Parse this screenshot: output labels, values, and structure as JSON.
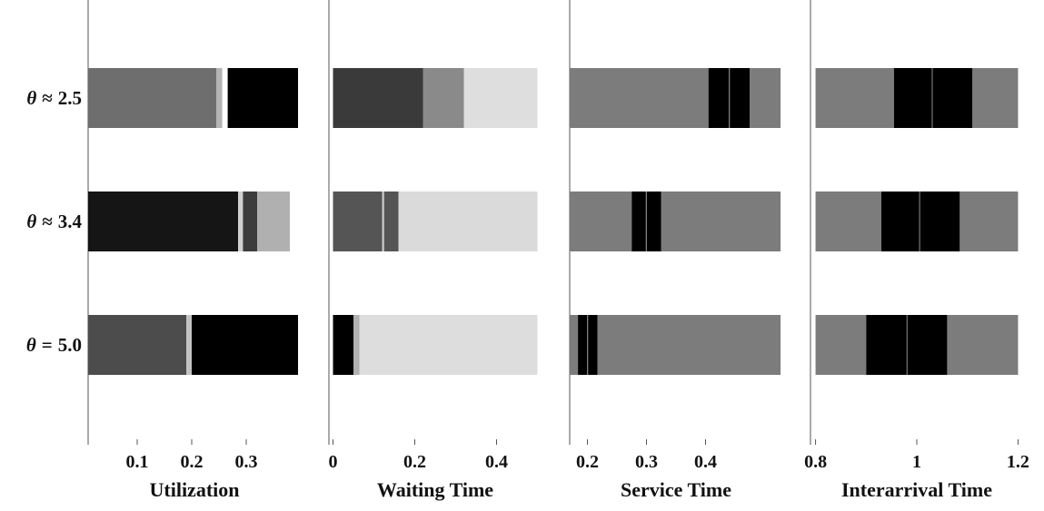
{
  "chart_data": {
    "type": "bar",
    "layout": "small multiples, horizontal segmented bars",
    "rows": [
      {
        "prefix": "θ",
        "relation": "≈",
        "value": "2.5"
      },
      {
        "prefix": "θ",
        "relation": "≈",
        "value": "3.4"
      },
      {
        "prefix": "θ",
        "relation": "=",
        "value": "5.0"
      }
    ],
    "panels": [
      {
        "xlabel": "Utilization",
        "xlim": [
          0.01,
          0.4
        ],
        "ticks": [
          {
            "value": 0.1,
            "label": "0.1"
          },
          {
            "value": 0.2,
            "label": "0.2"
          },
          {
            "value": 0.3,
            "label": "0.3"
          }
        ],
        "bars": [
          [
            {
              "x0": 0.01,
              "x1": 0.245,
              "color": "#6e6e6e"
            },
            {
              "x0": 0.245,
              "x1": 0.256,
              "color": "#b4b4b4"
            },
            {
              "x0": 0.266,
              "x1": 0.395,
              "color": "#000000"
            }
          ],
          [
            {
              "x0": 0.01,
              "x1": 0.285,
              "color": "#151515"
            },
            {
              "x0": 0.285,
              "x1": 0.294,
              "color": "#d0d0d0"
            },
            {
              "x0": 0.294,
              "x1": 0.32,
              "color": "#3c3c3c"
            },
            {
              "x0": 0.32,
              "x1": 0.38,
              "color": "#b0b0b0"
            }
          ],
          [
            {
              "x0": 0.01,
              "x1": 0.19,
              "color": "#4c4c4c"
            },
            {
              "x0": 0.19,
              "x1": 0.2,
              "color": "#c2c2c2"
            },
            {
              "x0": 0.2,
              "x1": 0.395,
              "color": "#000000"
            }
          ]
        ]
      },
      {
        "xlabel": "Waiting Time",
        "xlim": [
          -0.01,
          0.51
        ],
        "ticks": [
          {
            "value": 0,
            "label": "0"
          },
          {
            "value": 0.2,
            "label": "0.2"
          },
          {
            "value": 0.4,
            "label": "0.4"
          }
        ],
        "bars": [
          [
            {
              "x0": 0,
              "x1": 0.22,
              "color": "#3a3a3a"
            },
            {
              "x0": 0.22,
              "x1": 0.32,
              "color": "#8a8a8a"
            },
            {
              "x0": 0.32,
              "x1": 0.5,
              "color": "#dedede"
            }
          ],
          [
            {
              "x0": 0,
              "x1": 0.12,
              "color": "#555555"
            },
            {
              "x0": 0.12,
              "x1": 0.125,
              "color": "#c8c8c8"
            },
            {
              "x0": 0.125,
              "x1": 0.16,
              "color": "#555555"
            },
            {
              "x0": 0.16,
              "x1": 0.5,
              "color": "#dadada"
            }
          ],
          [
            {
              "x0": 0,
              "x1": 0.05,
              "color": "#000000"
            },
            {
              "x0": 0.05,
              "x1": 0.065,
              "color": "#b0b0b0"
            },
            {
              "x0": 0.065,
              "x1": 0.5,
              "color": "#dddddd"
            }
          ]
        ]
      },
      {
        "xlabel": "Service Time",
        "xlim": [
          0.17,
          0.53
        ],
        "ticks": [
          {
            "value": 0.2,
            "label": "0.2"
          },
          {
            "value": 0.3,
            "label": "0.3"
          },
          {
            "value": 0.4,
            "label": "0.4"
          }
        ],
        "bars": [
          [
            {
              "x0": 0.17,
              "x1": 0.405,
              "color": "#7c7c7c"
            },
            {
              "x0": 0.405,
              "x1": 0.44,
              "color": "#000000"
            },
            {
              "x0": 0.441,
              "x1": 0.475,
              "color": "#000000"
            },
            {
              "x0": 0.475,
              "x1": 0.527,
              "color": "#7c7c7c"
            }
          ],
          [
            {
              "x0": 0.17,
              "x1": 0.275,
              "color": "#7c7c7c"
            },
            {
              "x0": 0.275,
              "x1": 0.299,
              "color": "#000000"
            },
            {
              "x0": 0.3,
              "x1": 0.325,
              "color": "#000000"
            },
            {
              "x0": 0.325,
              "x1": 0.527,
              "color": "#7c7c7c"
            }
          ],
          [
            {
              "x0": 0.17,
              "x1": 0.184,
              "color": "#7c7c7c"
            },
            {
              "x0": 0.184,
              "x1": 0.2,
              "color": "#000000"
            },
            {
              "x0": 0.201,
              "x1": 0.217,
              "color": "#000000"
            },
            {
              "x0": 0.217,
              "x1": 0.527,
              "color": "#7c7c7c"
            }
          ]
        ]
      },
      {
        "xlabel": "Interarrival Time",
        "xlim": [
          0.79,
          1.21
        ],
        "ticks": [
          {
            "value": 0.8,
            "label": "0.8"
          },
          {
            "value": 1,
            "label": "1"
          },
          {
            "value": 1.2,
            "label": "1.2"
          }
        ],
        "bars": [
          [
            {
              "x0": 0.8,
              "x1": 0.955,
              "color": "#7c7c7c"
            },
            {
              "x0": 0.955,
              "x1": 1.03,
              "color": "#000000"
            },
            {
              "x0": 1.031,
              "x1": 1.11,
              "color": "#000000"
            },
            {
              "x0": 1.11,
              "x1": 1.2,
              "color": "#7c7c7c"
            }
          ],
          [
            {
              "x0": 0.8,
              "x1": 0.93,
              "color": "#7c7c7c"
            },
            {
              "x0": 0.93,
              "x1": 1.005,
              "color": "#000000"
            },
            {
              "x0": 1.006,
              "x1": 1.085,
              "color": "#000000"
            },
            {
              "x0": 1.085,
              "x1": 1.2,
              "color": "#7c7c7c"
            }
          ],
          [
            {
              "x0": 0.8,
              "x1": 0.9,
              "color": "#7c7c7c"
            },
            {
              "x0": 0.9,
              "x1": 0.98,
              "color": "#000000"
            },
            {
              "x0": 0.981,
              "x1": 1.06,
              "color": "#000000"
            },
            {
              "x0": 1.06,
              "x1": 1.2,
              "color": "#7c7c7c"
            }
          ]
        ]
      }
    ],
    "grid": false,
    "legend": "none"
  }
}
